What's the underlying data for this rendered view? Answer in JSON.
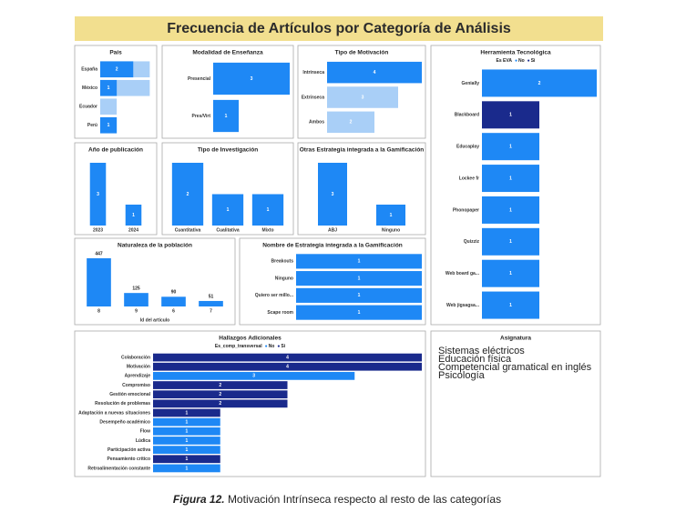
{
  "title": "Frecuencia de Artículos por Categoría de Análisis",
  "caption": {
    "label": "Figura 12.",
    "text": "Motivación Intrínseca respecto al resto de las categorías"
  },
  "chart_data": [
    {
      "type": "bar",
      "orientation": "horizontal",
      "title": "País",
      "categories": [
        "España",
        "México",
        "Ecuador",
        "Perú"
      ],
      "values": [
        2,
        1,
        null,
        1
      ],
      "color": "#1e88f5",
      "total_values": [
        3,
        3,
        1,
        1
      ],
      "total_color": "#a9cff7",
      "xlim": [
        0,
        3.2
      ]
    },
    {
      "type": "bar",
      "orientation": "horizontal",
      "title": "Modalidad de Enseñanza",
      "categories": [
        "Presencial",
        "Pres/Virt"
      ],
      "values": [
        3,
        1
      ],
      "color": "#1e88f5",
      "xlim": [
        0,
        3
      ]
    },
    {
      "type": "bar",
      "orientation": "horizontal",
      "title": "Tipo de Motivación",
      "categories": [
        "Intrínseca",
        "Extrínseca",
        "Ambos"
      ],
      "values": [
        4,
        3,
        2
      ],
      "colors": [
        "#1e88f5",
        "#a9cff7",
        "#a9cff7"
      ],
      "xlim": [
        0,
        4
      ]
    },
    {
      "type": "bar",
      "orientation": "horizontal",
      "title": "Herramienta Tecnológica",
      "legend_title": "Es EVA",
      "categories": [
        "Genially",
        "Blackboard",
        "Educaplay",
        "Lockee fr",
        "Phonopaper",
        "Quizziz",
        "Web board ga...",
        "Web jigsagsa..."
      ],
      "series": [
        {
          "name": "No",
          "color": "#1e88f5",
          "values": [
            2,
            null,
            1,
            1,
            1,
            1,
            1,
            1
          ]
        },
        {
          "name": "Si",
          "color": "#1a2a8c",
          "values": [
            null,
            1,
            null,
            null,
            null,
            null,
            null,
            null
          ]
        }
      ],
      "xlim": [
        0,
        2
      ]
    },
    {
      "type": "bar",
      "orientation": "vertical",
      "title": "Año de publicación",
      "categories": [
        "2023",
        "2024"
      ],
      "values": [
        3,
        1
      ],
      "color": "#1e88f5",
      "ylim": [
        0,
        3
      ]
    },
    {
      "type": "bar",
      "orientation": "vertical",
      "title": "Tipo de Investigación",
      "categories": [
        "Cuantitativa",
        "Cualitativa",
        "Mixto"
      ],
      "values": [
        2,
        1,
        1
      ],
      "color": "#1e88f5",
      "ylim": [
        0,
        2
      ]
    },
    {
      "type": "bar",
      "orientation": "vertical",
      "title": "Otras Estrategia integrada a la Gamificación",
      "categories": [
        "ABJ",
        "Ninguno"
      ],
      "values": [
        3,
        1
      ],
      "color": "#1e88f5",
      "ylim": [
        0,
        3
      ]
    },
    {
      "type": "bar",
      "orientation": "vertical",
      "title": "Naturaleza de la población",
      "x_label": "Id del artículo",
      "categories": [
        "8",
        "9",
        "6",
        "7"
      ],
      "values": [
        447,
        125,
        90,
        51
      ],
      "color": "#1e88f5",
      "label_position": "outside",
      "ylim": [
        0,
        447
      ]
    },
    {
      "type": "bar",
      "orientation": "horizontal",
      "title": "Nombre de Estrategia integrada a la Gamificación",
      "categories": [
        "Breakouts",
        "Ninguno",
        "Quiero ser millo...",
        "Scape room"
      ],
      "values": [
        1,
        1,
        1,
        1
      ],
      "color": "#1e88f5",
      "xlim": [
        0,
        1
      ]
    },
    {
      "type": "bar",
      "orientation": "horizontal",
      "title": "Hallazgos Adicionales",
      "legend_title": "Es_comp_transversal",
      "categories": [
        "Colaboración",
        "Motivación",
        "Aprendizaje",
        "Compromiso",
        "Gestión emocional",
        "Resolución de problemas",
        "Adaptación a nuevas situaciones",
        "Desempeño académico",
        "Flow",
        "Lúdica",
        "Participación activa",
        "Pensamiento crítico",
        "Retroalimentación constante"
      ],
      "series": [
        {
          "name": "No",
          "color": "#1e88f5",
          "values": [
            null,
            null,
            3,
            null,
            null,
            null,
            null,
            1,
            1,
            1,
            1,
            null,
            1
          ]
        },
        {
          "name": "Si",
          "color": "#1a2a8c",
          "values": [
            4,
            4,
            null,
            2,
            2,
            2,
            1,
            null,
            null,
            null,
            null,
            1,
            null
          ]
        }
      ],
      "xlim": [
        0,
        4
      ]
    },
    {
      "type": "word_list",
      "title": "Asignatura",
      "items": [
        {
          "text": "Sistemas eléctricos",
          "color": "#7b2d8e"
        },
        {
          "text": "Educación física",
          "color": "#1a2a8c"
        },
        {
          "text": "Competencial gramatical en inglés",
          "color": "#2a8fd6"
        },
        {
          "text": "Psicología",
          "color": "#e8873a"
        }
      ]
    }
  ]
}
